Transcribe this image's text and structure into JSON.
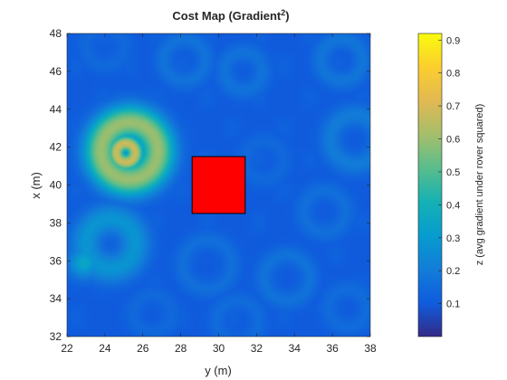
{
  "chart_data": {
    "type": "heatmap",
    "title": "Cost Map (Gradient",
    "title_superscript": "2",
    "title_close": ")",
    "xlabel": "y (m)",
    "ylabel": "x (m)",
    "xlim": [
      22,
      38
    ],
    "ylim": [
      32,
      48
    ],
    "x_ticks": [
      22,
      24,
      26,
      28,
      30,
      32,
      34,
      36,
      38
    ],
    "y_ticks": [
      32,
      34,
      36,
      38,
      40,
      42,
      44,
      46,
      48
    ],
    "colormap": "parula",
    "colorbar": {
      "label": "z (avg gradient under rover squared)",
      "range": [
        0,
        0.92
      ],
      "ticks": [
        0.1,
        0.2,
        0.3,
        0.4,
        0.5,
        0.6,
        0.7,
        0.8,
        0.9
      ]
    },
    "background_level": 0.1,
    "features": [
      {
        "kind": "ring",
        "y": 25.3,
        "x": 41.8,
        "radius": 1.5,
        "width": 0.9,
        "peak": 0.6
      },
      {
        "kind": "ring",
        "y": 25.1,
        "x": 41.7,
        "radius": 0.5,
        "width": 0.45,
        "peak": 0.68
      },
      {
        "kind": "ring",
        "y": 24.3,
        "x": 36.9,
        "radius": 1.3,
        "width": 0.8,
        "peak": 0.28
      },
      {
        "kind": "blob",
        "y": 22.9,
        "x": 35.9,
        "radius": 0.8,
        "peak": 0.35
      },
      {
        "kind": "ring",
        "y": 28.2,
        "x": 46.6,
        "radius": 1.1,
        "width": 0.5,
        "peak": 0.17
      },
      {
        "kind": "ring",
        "y": 31.3,
        "x": 46.0,
        "radius": 1.0,
        "width": 0.5,
        "peak": 0.17
      },
      {
        "kind": "ring",
        "y": 36.5,
        "x": 46.6,
        "radius": 1.1,
        "width": 0.5,
        "peak": 0.18
      },
      {
        "kind": "ring",
        "y": 37.2,
        "x": 42.4,
        "radius": 1.3,
        "width": 0.6,
        "peak": 0.2
      },
      {
        "kind": "ring",
        "y": 35.6,
        "x": 38.6,
        "radius": 1.1,
        "width": 0.5,
        "peak": 0.16
      },
      {
        "kind": "ring",
        "y": 33.6,
        "x": 35.1,
        "radius": 1.2,
        "width": 0.5,
        "peak": 0.17
      },
      {
        "kind": "ring",
        "y": 29.4,
        "x": 35.8,
        "radius": 1.3,
        "width": 0.5,
        "peak": 0.16
      },
      {
        "kind": "ring",
        "y": 32.4,
        "x": 41.3,
        "radius": 1.0,
        "width": 0.5,
        "peak": 0.14
      },
      {
        "kind": "ring",
        "y": 31.0,
        "x": 32.8,
        "radius": 1.1,
        "width": 0.5,
        "peak": 0.15
      },
      {
        "kind": "ring",
        "y": 26.5,
        "x": 33.2,
        "radius": 1.0,
        "width": 0.5,
        "peak": 0.14
      },
      {
        "kind": "ring",
        "y": 24.0,
        "x": 47.3,
        "radius": 1.0,
        "width": 0.5,
        "peak": 0.14
      },
      {
        "kind": "ring",
        "y": 36.8,
        "x": 33.5,
        "radius": 1.0,
        "width": 0.5,
        "peak": 0.15
      }
    ],
    "obstacle": {
      "label": "",
      "color": "#ff0000",
      "y_range": [
        28.6,
        31.4
      ],
      "x_range": [
        38.5,
        41.5
      ]
    }
  }
}
